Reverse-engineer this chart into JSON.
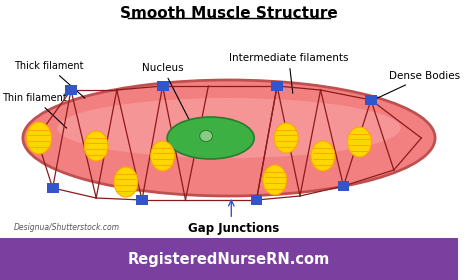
{
  "title": "Smooth Muscle Structure",
  "bg_color": "#ffffff",
  "footer_bg": "#7B3FA0",
  "footer_text": "RegisteredNurseRN.com",
  "footer_text_color": "#ffffff",
  "watermark": "Designua/Shutterstock.com",
  "labels": {
    "thick_filament": "Thick filament",
    "thin_filament": "Thin filament",
    "nucleus": "Nucleus",
    "intermediate": "Intermediate filaments",
    "dense_bodies": "Dense Bodies",
    "gap_junctions": "Gap Junctions"
  },
  "cell_color": "#F28080",
  "cell_outline": "#C05050",
  "nucleus_fill": "#3CB043",
  "nucleus_outline": "#2A7A30",
  "filament_color": "#8B1A1A",
  "dense_body_color": "#3355CC",
  "myosin_fill": "#FFD700",
  "myosin_outline": "#FFA500"
}
